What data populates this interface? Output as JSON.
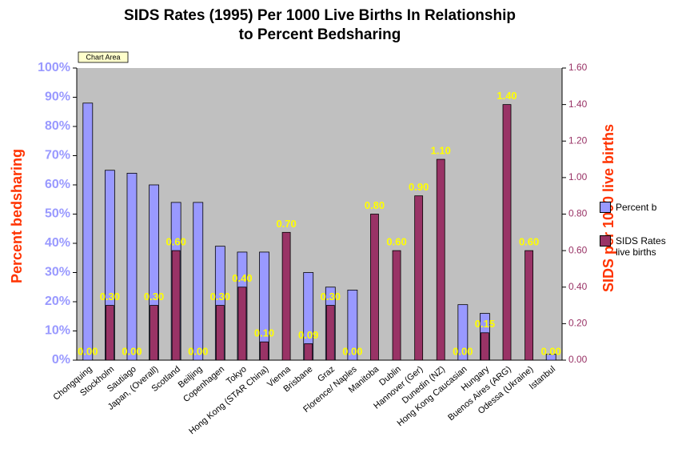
{
  "chart_data": {
    "type": "bar",
    "title": [
      "SIDS Rates (1995) Per 1000 Live Births In Relationship",
      "to Percent Bedsharing"
    ],
    "annotation": "Chart Area",
    "ylabel": "Percent bedsharing",
    "y2label": "SIDS per 1000 live births",
    "categories": [
      "Chongquing",
      "Stockholm",
      "Sautiago",
      "Japan, (Overall)",
      "Scotland",
      "Beiljing",
      "Copenhagen",
      "Tokyo",
      "Hong Kong (STAR China)",
      "Vienna",
      "Brisbane",
      "Graz",
      "Florence/ Naples",
      "Manitoba",
      "Dublin",
      "Hannover (Ger)",
      "Dunedin (NZ)",
      "Hong Kong Caucasian",
      "Hungary",
      "Buenos Aires (ARG)",
      "Odessa (Ukraine)",
      "Istanbul"
    ],
    "series": [
      {
        "name": "Percent b",
        "color": "#9999ff",
        "values": [
          88,
          65,
          64,
          60,
          54,
          54,
          39,
          37,
          37,
          null,
          30,
          25,
          24,
          null,
          null,
          null,
          null,
          19,
          16,
          null,
          null,
          2
        ]
      },
      {
        "name": "SIDS Rates live births",
        "color": "#993366",
        "axis": "y2",
        "values": [
          0,
          0.3,
          0,
          0.3,
          0.6,
          0,
          0.3,
          0.4,
          0.1,
          0.7,
          0.09,
          0.3,
          0,
          0.8,
          0.6,
          0.9,
          1.1,
          0,
          0.15,
          1.4,
          0.6,
          0
        ],
        "value_labels": [
          "0.00",
          "0.30",
          "0.00",
          "0.30",
          "0.60",
          "0.00",
          "0.30",
          "0.40",
          "0.10",
          "0.70",
          "0.09",
          "0.30",
          "0.00",
          "0.80",
          "0.60",
          "0.90",
          "1.10",
          "0.00",
          "0.15",
          "1.40",
          "0.60",
          "0.00"
        ]
      }
    ],
    "ylim": [
      0,
      100
    ],
    "yticks": [
      {
        "value": 0,
        "label": "0%"
      },
      {
        "value": 10,
        "label": "10%"
      },
      {
        "value": 20,
        "label": "20%"
      },
      {
        "value": 30,
        "label": "30%"
      },
      {
        "value": 40,
        "label": "40%"
      },
      {
        "value": 50,
        "label": "50%"
      },
      {
        "value": 60,
        "label": "60%"
      },
      {
        "value": 70,
        "label": "70%"
      },
      {
        "value": 80,
        "label": "80%"
      },
      {
        "value": 90,
        "label": "90%"
      },
      {
        "value": 100,
        "label": "100%"
      }
    ],
    "y2lim": [
      0,
      1.6
    ],
    "y2ticks": [
      {
        "value": 0,
        "label": "0.00"
      },
      {
        "value": 0.2,
        "label": "0.20"
      },
      {
        "value": 0.4,
        "label": "0.40"
      },
      {
        "value": 0.6,
        "label": "0.60"
      },
      {
        "value": 0.8,
        "label": "0.80"
      },
      {
        "value": 1.0,
        "label": "1.00"
      },
      {
        "value": 1.2,
        "label": "1.20"
      },
      {
        "value": 1.4,
        "label": "1.40"
      },
      {
        "value": 1.6,
        "label": "1.60"
      }
    ],
    "legend": "right"
  }
}
